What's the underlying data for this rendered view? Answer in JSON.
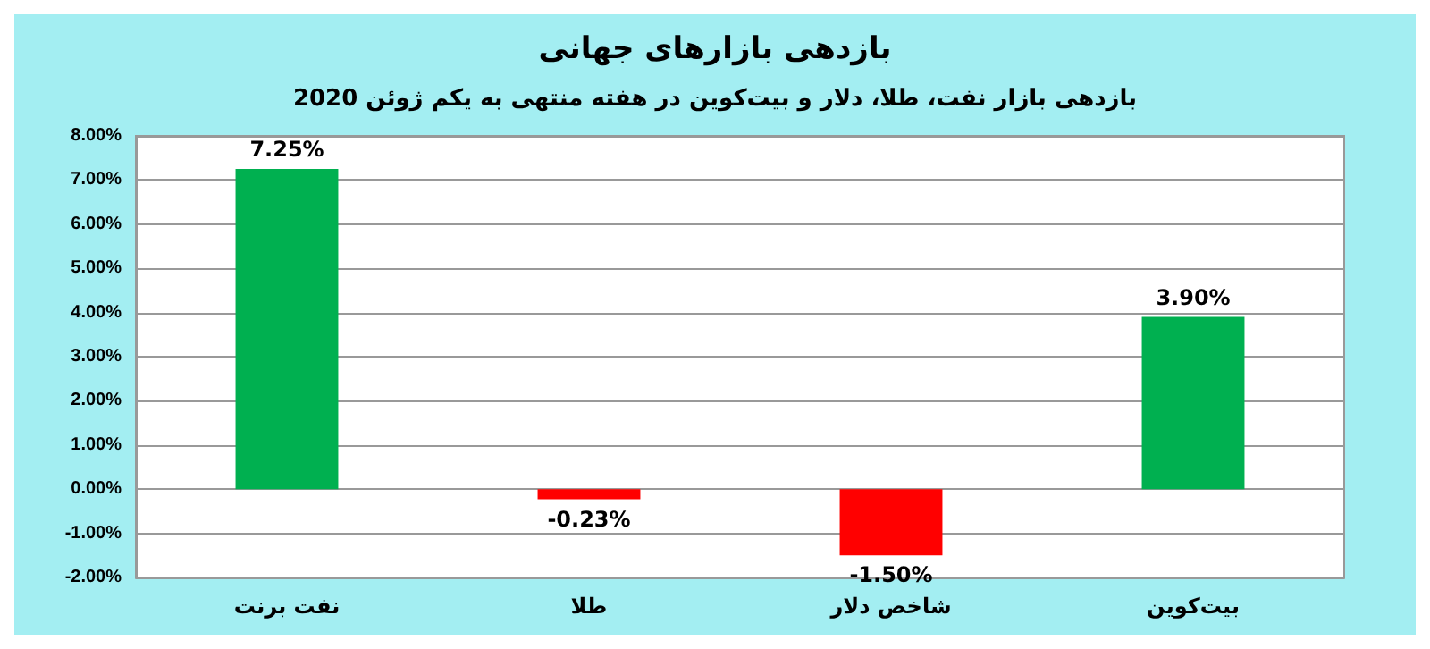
{
  "chart_data": {
    "type": "bar",
    "title": "بازدهی بازارهای جهانی",
    "subtitle": "بازدهی بازار نفت، طلا، دلار و بیت‌کوین در هفته منتهی به یکم ژوئن 2020",
    "categories": [
      "نفت برنت",
      "طلا",
      "شاخص دلار",
      "بیت‌کوین"
    ],
    "values": [
      7.25,
      -0.23,
      -1.5,
      3.9
    ],
    "colors": [
      "#00b050",
      "#ff0000",
      "#ff0000",
      "#00b050"
    ],
    "value_labels": [
      "7.25%",
      "-0.23%",
      "-1.50%",
      "3.90%"
    ],
    "ylim": [
      -2,
      8
    ],
    "yticks": [
      {
        "value": -2,
        "label": "-2.00%"
      },
      {
        "value": -1,
        "label": "-1.00%"
      },
      {
        "value": 0,
        "label": "0.00%"
      },
      {
        "value": 1,
        "label": "1.00%"
      },
      {
        "value": 2,
        "label": "2.00%"
      },
      {
        "value": 3,
        "label": "3.00%"
      },
      {
        "value": 4,
        "label": "4.00%"
      },
      {
        "value": 5,
        "label": "5.00%"
      },
      {
        "value": 6,
        "label": "6.00%"
      },
      {
        "value": 7,
        "label": "7.00%"
      },
      {
        "value": 8,
        "label": "8.00%"
      }
    ],
    "grid": "y"
  }
}
